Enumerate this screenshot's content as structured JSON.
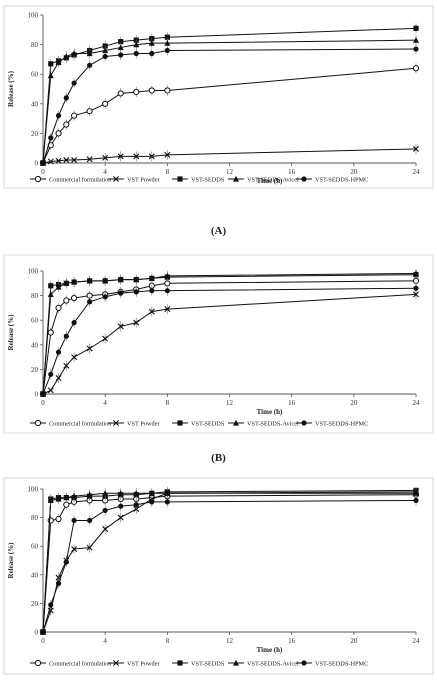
{
  "chart_data": [
    {
      "panel_label": "(A)",
      "type": "line",
      "xlabel": "Time (h)",
      "ylabel": "Release (%)",
      "xlim": [
        0,
        24
      ],
      "ylim": [
        0,
        100
      ],
      "xticks": [
        "0",
        "4",
        "8",
        "12",
        "16",
        "20",
        "24"
      ],
      "yticks": [
        "0",
        "20",
        "40",
        "60",
        "80",
        "100"
      ],
      "grid": false,
      "legend": "bottom",
      "series": [
        {
          "name": "Commercial formulation",
          "marker": "open-circle",
          "x": [
            0,
            0.5,
            1,
            1.5,
            2,
            3,
            4,
            5,
            6,
            7,
            8,
            24
          ],
          "y": [
            0,
            12,
            20,
            26,
            32,
            35,
            40,
            47,
            48,
            49,
            49,
            64
          ]
        },
        {
          "name": "VST Powder",
          "marker": "x",
          "x": [
            0,
            0.5,
            1,
            1.5,
            2,
            3,
            4,
            5,
            6,
            7,
            8,
            24
          ],
          "y": [
            0,
            1,
            1.5,
            2,
            2,
            2.5,
            3.5,
            4.5,
            4.5,
            4.5,
            5.5,
            9.5
          ]
        },
        {
          "name": "VST-SEDDS",
          "marker": "square",
          "x": [
            0,
            0.5,
            1,
            1.5,
            2,
            3,
            4,
            5,
            6,
            7,
            8,
            24
          ],
          "y": [
            0,
            67,
            69,
            71,
            73,
            76,
            79,
            82,
            83,
            84,
            85,
            91
          ]
        },
        {
          "name": "VST-SEDDS-Avicel",
          "marker": "triangle",
          "x": [
            0,
            0.5,
            1,
            1.5,
            2,
            3,
            4,
            5,
            6,
            7,
            8,
            24
          ],
          "y": [
            0,
            59,
            68,
            72,
            74,
            74,
            76,
            78,
            80,
            81,
            81,
            83
          ]
        },
        {
          "name": "VST-SEDDS-HPMC",
          "marker": "filled-circle",
          "x": [
            0,
            0.5,
            1,
            1.5,
            2,
            3,
            4,
            5,
            6,
            7,
            8,
            24
          ],
          "y": [
            0,
            17,
            32,
            44,
            54,
            66,
            72,
            73,
            74,
            74,
            76,
            77
          ]
        }
      ]
    },
    {
      "panel_label": "(B)",
      "type": "line",
      "xlabel": "Time (h)",
      "ylabel": "Release (%)",
      "xlim": [
        0,
        24
      ],
      "ylim": [
        0,
        100
      ],
      "xticks": [
        "0",
        "4",
        "8",
        "12",
        "16",
        "20",
        "24"
      ],
      "yticks": [
        "0",
        "20",
        "40",
        "60",
        "80",
        "100"
      ],
      "grid": false,
      "legend": "bottom",
      "series": [
        {
          "name": "Commercial formulation",
          "marker": "open-circle",
          "x": [
            0,
            0.5,
            1,
            1.5,
            2,
            3,
            4,
            5,
            6,
            7,
            8,
            24
          ],
          "y": [
            0,
            50,
            70,
            76,
            78,
            80,
            81,
            83,
            85,
            88,
            90,
            92
          ]
        },
        {
          "name": "VST Powder",
          "marker": "x",
          "x": [
            0,
            0.5,
            1,
            1.5,
            2,
            3,
            4,
            5,
            6,
            7,
            8,
            24
          ],
          "y": [
            0,
            3,
            13,
            23,
            30,
            37,
            45,
            55,
            58,
            67,
            69,
            81
          ]
        },
        {
          "name": "VST-SEDDS",
          "marker": "square",
          "x": [
            0,
            0.5,
            1,
            1.5,
            2,
            3,
            4,
            5,
            6,
            7,
            8,
            24
          ],
          "y": [
            0,
            88,
            89,
            90,
            91,
            92,
            92,
            93,
            93,
            94,
            95,
            97
          ]
        },
        {
          "name": "VST-SEDDS-Avicel",
          "marker": "triangle",
          "x": [
            0,
            0.5,
            1,
            1.5,
            2,
            3,
            4,
            5,
            6,
            7,
            8,
            24
          ],
          "y": [
            0,
            81,
            87,
            90,
            91,
            92,
            92,
            93,
            93,
            94,
            96,
            98
          ]
        },
        {
          "name": "VST-SEDDS-HPMC",
          "marker": "filled-circle",
          "x": [
            0,
            0.5,
            1,
            1.5,
            2,
            3,
            4,
            5,
            6,
            7,
            8,
            24
          ],
          "y": [
            0,
            16,
            34,
            47,
            58,
            75,
            79,
            82,
            83,
            84,
            84,
            86
          ]
        }
      ]
    },
    {
      "panel_label": "",
      "type": "line",
      "xlabel": "Time (h)",
      "ylabel": "Release (%)",
      "xlim": [
        0,
        24
      ],
      "ylim": [
        0,
        100
      ],
      "xticks": [
        "0",
        "4",
        "8",
        "12",
        "16",
        "20",
        "24"
      ],
      "yticks": [
        "0",
        "20",
        "40",
        "60",
        "80",
        "100"
      ],
      "grid": false,
      "legend": "bottom",
      "series": [
        {
          "name": "Commercial formulation",
          "marker": "open-circle",
          "x": [
            0,
            0.5,
            1,
            1.5,
            2,
            3,
            4,
            5,
            6,
            7,
            8,
            24
          ],
          "y": [
            0,
            78,
            79,
            89,
            91,
            92,
            92,
            93,
            93,
            94,
            95,
            96
          ]
        },
        {
          "name": "VST Powder",
          "marker": "x",
          "x": [
            0,
            0.5,
            1,
            1.5,
            2,
            3,
            4,
            5,
            6,
            7,
            8,
            24
          ],
          "y": [
            0,
            15,
            38,
            50,
            58,
            59,
            72,
            80,
            86,
            93,
            97,
            98
          ]
        },
        {
          "name": "VST-SEDDS",
          "marker": "square",
          "x": [
            0,
            0.5,
            1,
            1.5,
            2,
            3,
            4,
            5,
            6,
            7,
            8,
            24
          ],
          "y": [
            0,
            93,
            94,
            94,
            94,
            95,
            95,
            96,
            96,
            97,
            98,
            99
          ]
        },
        {
          "name": "VST-SEDDS-Avicel",
          "marker": "triangle",
          "x": [
            0,
            0.5,
            1,
            1.5,
            2,
            3,
            4,
            5,
            6,
            7,
            8,
            24
          ],
          "y": [
            0,
            92,
            93,
            94,
            95,
            96,
            97,
            97,
            97,
            97,
            97,
            97
          ]
        },
        {
          "name": "VST-SEDDS-HPMC",
          "marker": "filled-circle",
          "x": [
            0,
            0.5,
            1,
            1.5,
            2,
            3,
            4,
            5,
            6,
            7,
            8,
            24
          ],
          "y": [
            0,
            19,
            34,
            49,
            78,
            78,
            85,
            88,
            89,
            91,
            91,
            92
          ]
        }
      ]
    }
  ],
  "colors": {
    "ink": "#111111",
    "frame": "#555555"
  }
}
